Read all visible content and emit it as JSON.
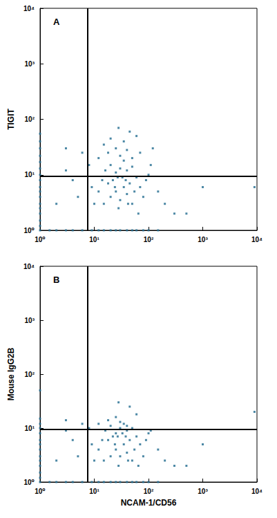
{
  "chart_data": [
    {
      "type": "scatter",
      "title": "A",
      "ylabel": "TIGIT",
      "log": true,
      "grid": false,
      "color": "#1f6a8f",
      "marker": "square",
      "xlim": [
        1,
        10000
      ],
      "ylim": [
        1,
        10000
      ],
      "xticks": [
        {
          "value": 1,
          "label": "10⁰"
        },
        {
          "value": 10,
          "label": "10¹"
        },
        {
          "value": 100,
          "label": "10²"
        },
        {
          "value": 1000,
          "label": "10³"
        },
        {
          "value": 10000,
          "label": "10⁴"
        }
      ],
      "yticks": [
        {
          "value": 1,
          "label": "10⁰"
        },
        {
          "value": 10,
          "label": "10¹"
        },
        {
          "value": 100,
          "label": "10²"
        },
        {
          "value": 1000,
          "label": "10³"
        },
        {
          "value": 10000,
          "label": "10⁴"
        }
      ],
      "quadrant": {
        "x": 7.5,
        "y": 9.5
      },
      "x": [
        1,
        1,
        1,
        1,
        1,
        1,
        1,
        1,
        1,
        1,
        1,
        1,
        1,
        1,
        1,
        1,
        1,
        1.5,
        2,
        3,
        4,
        6,
        9,
        12,
        15,
        20,
        25,
        30,
        40,
        50,
        60,
        80,
        100,
        150,
        15,
        20,
        25,
        30,
        35,
        40,
        18,
        22,
        28,
        33,
        45,
        50,
        55,
        12,
        10,
        14,
        16,
        20,
        25,
        30,
        35,
        40,
        50,
        60,
        70,
        80,
        65,
        90,
        12,
        18,
        25,
        30,
        40,
        50,
        35,
        20,
        15,
        8,
        9,
        5,
        4,
        3,
        2,
        6,
        3,
        110,
        150,
        200,
        300,
        120,
        60,
        45,
        28,
        70,
        100,
        500,
        1000,
        9000,
        38,
        42,
        24,
        27
      ],
      "values": [
        1,
        1.2,
        1.5,
        2,
        2.5,
        3,
        4,
        5,
        6,
        8,
        10,
        13,
        17,
        22,
        30,
        40,
        55,
        1,
        1,
        1,
        1,
        1,
        1,
        1,
        1,
        1,
        1,
        1,
        1,
        1,
        1,
        1,
        1,
        1,
        3,
        4,
        5,
        3.5,
        6,
        4.5,
        7,
        8,
        2.5,
        9,
        7,
        3,
        5,
        5,
        3,
        8,
        12,
        15,
        11,
        13,
        18,
        12,
        14,
        9,
        6,
        4,
        2,
        8,
        20,
        25,
        30,
        22,
        28,
        20,
        40,
        45,
        35,
        15,
        6,
        4,
        8,
        12,
        3,
        25,
        30,
        15,
        5,
        3,
        2,
        30,
        50,
        60,
        70,
        25,
        10,
        2,
        6,
        6,
        8,
        3,
        6,
        9
      ]
    },
    {
      "type": "scatter",
      "title": "B",
      "xlabel": "NCAM-1/CD56",
      "ylabel": "Mouse IgG2B",
      "log": true,
      "grid": false,
      "color": "#1f6a8f",
      "marker": "square",
      "xlim": [
        1,
        10000
      ],
      "ylim": [
        1,
        10000
      ],
      "xticks": [
        {
          "value": 1,
          "label": "10⁰"
        },
        {
          "value": 10,
          "label": "10¹"
        },
        {
          "value": 100,
          "label": "10²"
        },
        {
          "value": 1000,
          "label": "10³"
        },
        {
          "value": 10000,
          "label": "10⁴"
        }
      ],
      "yticks": [
        {
          "value": 1,
          "label": "10⁰"
        },
        {
          "value": 10,
          "label": "10¹"
        },
        {
          "value": 100,
          "label": "10²"
        },
        {
          "value": 1000,
          "label": "10³"
        },
        {
          "value": 10000,
          "label": "10⁴"
        }
      ],
      "quadrant": {
        "x": 7.5,
        "y": 9.5
      },
      "x": [
        1,
        1,
        1,
        1,
        1,
        1,
        1,
        1,
        1,
        1,
        1,
        1,
        1,
        1,
        1.5,
        2,
        3,
        4,
        6,
        9,
        12,
        15,
        20,
        25,
        30,
        40,
        50,
        60,
        80,
        100,
        150,
        15,
        20,
        25,
        30,
        35,
        40,
        18,
        22,
        28,
        33,
        45,
        50,
        55,
        12,
        10,
        14,
        16,
        20,
        25,
        30,
        35,
        40,
        50,
        60,
        70,
        80,
        65,
        90,
        12,
        18,
        25,
        30,
        40,
        8,
        9,
        5,
        4,
        3,
        2,
        6,
        3,
        110,
        150,
        200,
        300,
        60,
        45,
        28,
        100,
        500,
        1000,
        9000,
        38,
        42,
        24,
        27
      ],
      "values": [
        1,
        1.2,
        1.5,
        2,
        2.5,
        3,
        4,
        5,
        6,
        8,
        10,
        12,
        15,
        50,
        1,
        1,
        1,
        1,
        1,
        1,
        1,
        1,
        1,
        1,
        1,
        1,
        1,
        1,
        1,
        1,
        1,
        2.5,
        3,
        4,
        3,
        5,
        3.5,
        6,
        7,
        2,
        8,
        6,
        2.5,
        4,
        4,
        2.5,
        6,
        9,
        11,
        8,
        10,
        12,
        9,
        10,
        7,
        5,
        3,
        2,
        6,
        12,
        14,
        16,
        13,
        11,
        10,
        5,
        3,
        6,
        9,
        2.5,
        12,
        14,
        9,
        4,
        2.5,
        2,
        18,
        25,
        30,
        8,
        2,
        5,
        20,
        7,
        2.5,
        5,
        7
      ]
    }
  ]
}
